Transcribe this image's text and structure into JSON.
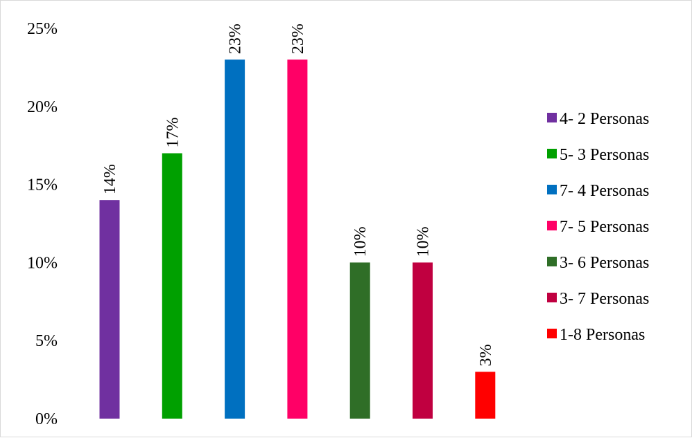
{
  "chart_data": {
    "type": "bar",
    "categories": [
      "4- 2 Personas",
      "5- 3 Personas",
      "7- 4 Personas",
      "7- 5 Personas",
      "3- 6 Personas",
      "3- 7 Personas",
      "1-8 Personas"
    ],
    "values": [
      14,
      17,
      23,
      23,
      10,
      10,
      3
    ],
    "data_labels": [
      "14%",
      "17%",
      "23%",
      "23%",
      "10%",
      "10%",
      "3%"
    ],
    "colors": [
      "#7030a0",
      "#00a000",
      "#0070c0",
      "#ff0066",
      "#2f6e27",
      "#c00040",
      "#ff0000"
    ],
    "yticks": [
      "0%",
      "5%",
      "10%",
      "15%",
      "20%",
      "25%"
    ],
    "ylim": [
      0,
      25
    ],
    "title": "",
    "xlabel": "",
    "ylabel": "",
    "grid": false,
    "legend_position": "right"
  }
}
